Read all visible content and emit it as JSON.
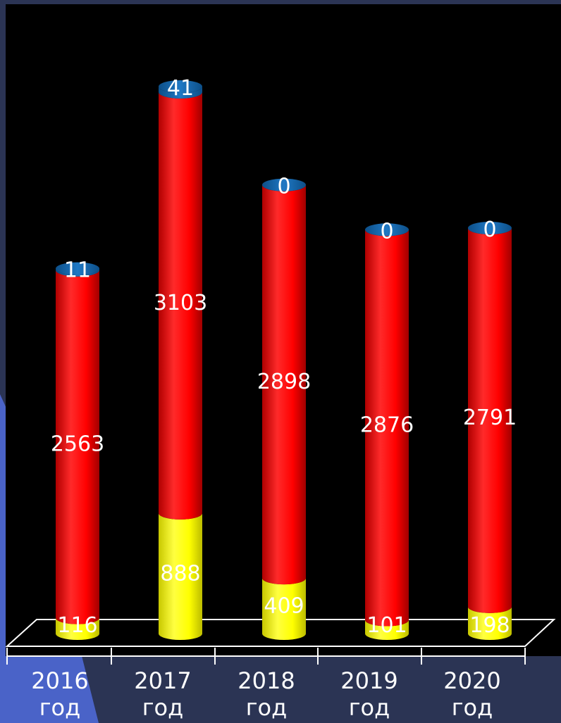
{
  "chart_data": {
    "type": "bar",
    "stacked": true,
    "categories": [
      "2016\nгод",
      "2017\nгод",
      "2018\nгод",
      "2019\nгод",
      "2020\nгод"
    ],
    "series": [
      {
        "values": [
          116,
          888,
          409,
          101,
          198
        ],
        "color": "#ffff00"
      },
      {
        "values": [
          2563,
          3103,
          2898,
          2876,
          2791
        ],
        "color": "#ff0000"
      },
      {
        "values": [
          11,
          41,
          0,
          0,
          0
        ],
        "color": "#1565a8"
      }
    ],
    "title": "",
    "xlabel": "",
    "ylabel": "",
    "ylim": [
      0,
      4100
    ],
    "grid": false,
    "legend": "none"
  },
  "colors": {
    "page_background": "#2b3454",
    "plot_background": "#000000",
    "accent_panel": "#4a63c8"
  }
}
